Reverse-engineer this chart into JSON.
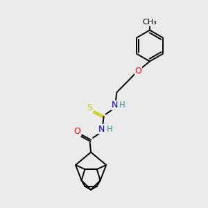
{
  "bg_color": "#ebebeb",
  "atom_colors": {
    "O": "#ff0000",
    "N": "#0000cc",
    "S": "#cccc00",
    "H_label": "#339999",
    "C": "#000000"
  },
  "bond_lw": 1.4,
  "font_size": 9,
  "xlim": [
    0,
    10
  ],
  "ylim": [
    0,
    10
  ]
}
